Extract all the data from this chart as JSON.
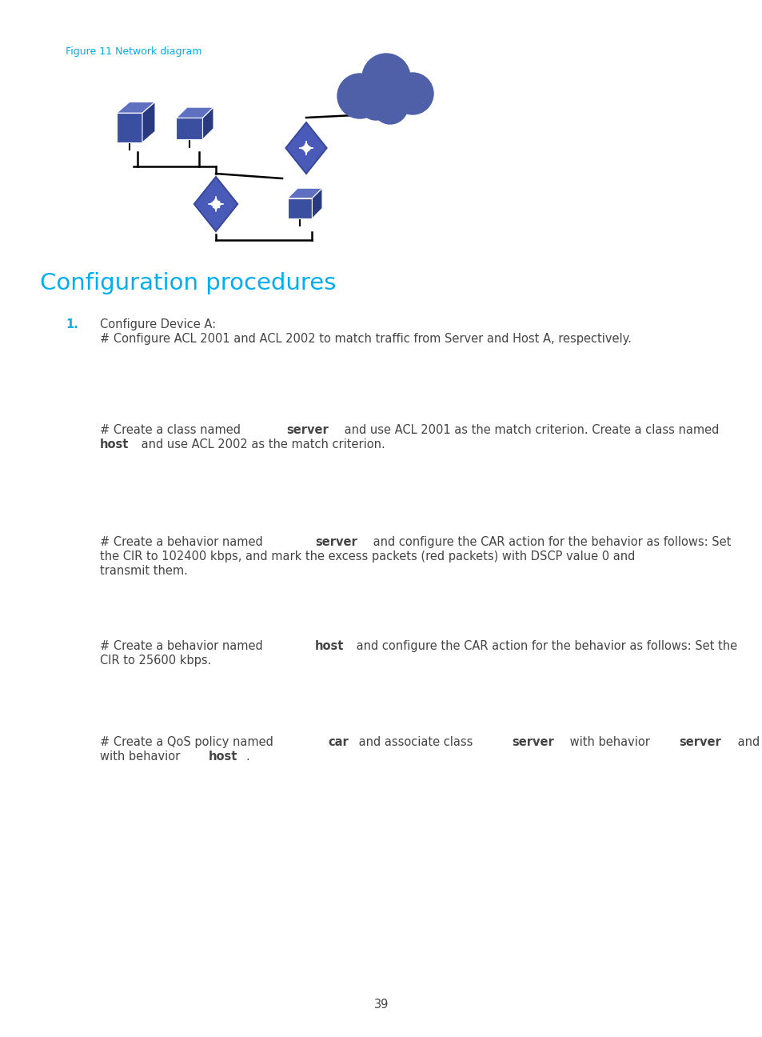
{
  "figure_label": "Figure 11 Network diagram",
  "section_title": "Configuration procedures",
  "section_title_color": "#00AEEF",
  "figure_label_color": "#00AEEF",
  "background_color": "#ffffff",
  "body_text_color": "#444444",
  "body_font_size": 10.5,
  "numbered_item": "1.",
  "numbered_item_color": "#00AEEF",
  "item_header": "Configure Device A:",
  "page_number": "39",
  "device_color": "#3a4fa0",
  "device_dark": "#2a3a80",
  "device_light": "#6070c0",
  "cloud_color": "#5060a8",
  "switch_color": "#4a5ab8",
  "switch_dark": "#3a4a98"
}
